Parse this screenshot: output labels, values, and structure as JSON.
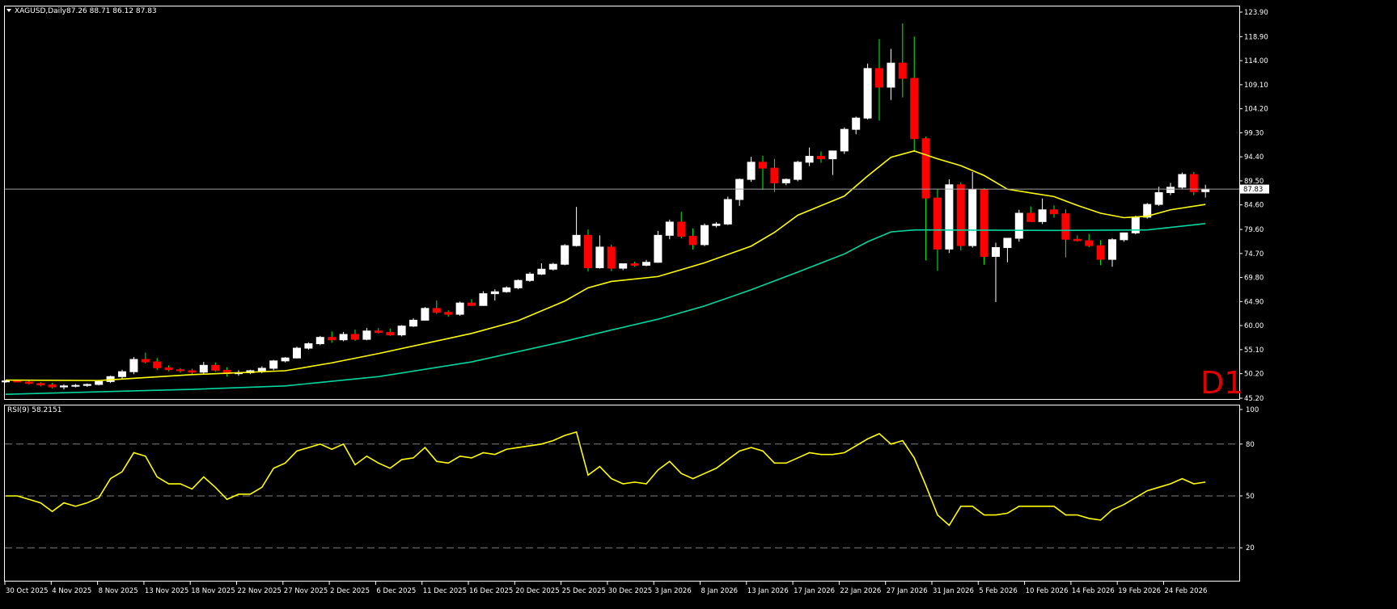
{
  "chart_title": "XAGUSD,Daily",
  "ohlc_readout": "87.26 88.71 86.12 87.83",
  "timeframe_label": "D1",
  "current_price_label": "87.83",
  "rsi_label": "RSI(9) 58.2151",
  "colors": {
    "background": "#000000",
    "frame": "#ffffff",
    "bull_candle": "#ffffff",
    "bear_candle": "#ff0000",
    "ma_fast": "#ffff00",
    "ma_slow": "#00d7a0",
    "rsi_line": "#ffff00",
    "rsi_levels": "#808080",
    "timeframe_label": "#e00000"
  },
  "chart_data": [
    {
      "type": "candlestick",
      "title": "XAGUSD,Daily",
      "y_ticks": [
        "123.90",
        "118.90",
        "114.00",
        "109.10",
        "104.20",
        "99.30",
        "94.40",
        "89.50",
        "84.60",
        "79.60",
        "74.70",
        "69.80",
        "64.90",
        "60.00",
        "55.10",
        "50.20",
        "45.20"
      ],
      "ylim": [
        45.2,
        123.9
      ],
      "x_tick_labels": [
        "30 Oct 2025",
        "4 Nov 2025",
        "8 Nov 2025",
        "13 Nov 2025",
        "18 Nov 2025",
        "22 Nov 2025",
        "27 Nov 2025",
        "2 Dec 2025",
        "6 Dec 2025",
        "11 Dec 2025",
        "16 Dec 2025",
        "20 Dec 2025",
        "25 Dec 2025",
        "30 Dec 2025",
        "3 Jan 2026",
        "8 Jan 2026",
        "13 Jan 2026",
        "17 Jan 2026",
        "22 Jan 2026",
        "27 Jan 2026",
        "31 Jan 2026",
        "5 Feb 2026",
        "10 Feb 2026",
        "14 Feb 2026",
        "19 Feb 2026",
        "24 Feb 2026"
      ],
      "last_price": 87.83,
      "candles": [
        [
          48.6,
          48.9,
          48.3,
          48.7
        ],
        [
          48.7,
          49.0,
          48.4,
          48.5
        ],
        [
          48.5,
          48.8,
          48.0,
          48.2
        ],
        [
          48.2,
          48.5,
          47.6,
          47.9
        ],
        [
          47.9,
          48.3,
          47.2,
          47.5
        ],
        [
          47.5,
          48.0,
          47.0,
          47.7
        ],
        [
          47.7,
          48.1,
          47.4,
          47.8
        ],
        [
          47.8,
          48.2,
          47.5,
          48.0
        ],
        [
          48.0,
          48.9,
          47.8,
          48.6
        ],
        [
          48.6,
          49.8,
          48.3,
          49.6
        ],
        [
          49.6,
          51.0,
          49.2,
          50.6
        ],
        [
          50.6,
          53.6,
          50.1,
          53.1
        ],
        [
          53.1,
          54.5,
          52.3,
          52.6
        ],
        [
          52.6,
          53.4,
          51.0,
          51.4
        ],
        [
          51.4,
          51.9,
          50.7,
          51.0
        ],
        [
          51.0,
          51.3,
          50.4,
          50.8
        ],
        [
          50.8,
          51.2,
          50.1,
          50.5
        ],
        [
          50.5,
          52.6,
          50.0,
          51.9
        ],
        [
          51.9,
          52.5,
          50.6,
          50.9
        ],
        [
          50.9,
          51.5,
          49.6,
          50.2
        ],
        [
          50.2,
          50.9,
          49.8,
          50.4
        ],
        [
          50.4,
          51.0,
          50.1,
          50.8
        ],
        [
          50.8,
          51.7,
          50.3,
          51.3
        ],
        [
          51.3,
          53.0,
          50.9,
          52.8
        ],
        [
          52.8,
          53.6,
          52.5,
          53.4
        ],
        [
          53.4,
          55.7,
          53.3,
          55.4
        ],
        [
          55.4,
          56.6,
          55.1,
          56.3
        ],
        [
          56.3,
          57.9,
          56.0,
          57.6
        ],
        [
          57.6,
          58.8,
          56.5,
          57.1
        ],
        [
          57.1,
          58.7,
          56.8,
          58.2
        ],
        [
          58.2,
          59.2,
          56.9,
          57.2
        ],
        [
          57.2,
          59.5,
          57.0,
          58.9
        ],
        [
          58.9,
          59.5,
          58.4,
          58.6
        ],
        [
          58.6,
          59.4,
          57.9,
          58.1
        ],
        [
          58.1,
          60.1,
          57.8,
          59.9
        ],
        [
          59.9,
          61.5,
          59.7,
          61.1
        ],
        [
          61.1,
          63.8,
          61.0,
          63.5
        ],
        [
          63.5,
          65.1,
          62.4,
          62.7
        ],
        [
          62.7,
          63.1,
          61.8,
          62.3
        ],
        [
          62.3,
          64.9,
          62.0,
          64.6
        ],
        [
          64.6,
          65.4,
          64.0,
          64.1
        ],
        [
          64.1,
          67.0,
          64.0,
          66.5
        ],
        [
          66.5,
          67.4,
          65.1,
          66.9
        ],
        [
          66.9,
          68.0,
          66.7,
          67.7
        ],
        [
          67.7,
          69.4,
          67.4,
          69.2
        ],
        [
          69.2,
          70.9,
          68.9,
          70.5
        ],
        [
          70.5,
          72.7,
          70.3,
          71.5
        ],
        [
          71.5,
          72.8,
          71.2,
          72.5
        ],
        [
          72.5,
          76.6,
          72.3,
          76.3
        ],
        [
          76.3,
          84.2,
          76.1,
          78.4
        ],
        [
          78.4,
          79.6,
          71.0,
          71.8
        ],
        [
          71.8,
          78.4,
          71.6,
          76.0
        ],
        [
          76.0,
          76.5,
          71.1,
          71.7
        ],
        [
          71.7,
          72.5,
          71.3,
          72.6
        ],
        [
          72.6,
          73.0,
          72.0,
          72.3
        ],
        [
          72.3,
          73.4,
          72.1,
          72.9
        ],
        [
          72.9,
          79.3,
          72.8,
          78.4
        ],
        [
          78.4,
          81.6,
          77.6,
          81.1
        ],
        [
          81.1,
          83.2,
          77.8,
          78.2
        ],
        [
          78.2,
          79.8,
          75.5,
          76.5
        ],
        [
          76.5,
          80.8,
          76.2,
          80.4
        ],
        [
          80.4,
          81.1,
          80.0,
          80.7
        ],
        [
          80.7,
          86.3,
          80.5,
          85.7
        ],
        [
          85.7,
          90.0,
          84.4,
          89.8
        ],
        [
          89.8,
          94.4,
          89.3,
          93.3
        ],
        [
          93.3,
          94.6,
          87.7,
          92.1
        ],
        [
          92.1,
          94.0,
          87.2,
          89.1
        ],
        [
          89.1,
          90.0,
          88.6,
          89.8
        ],
        [
          89.8,
          93.6,
          89.4,
          93.3
        ],
        [
          93.3,
          96.3,
          92.5,
          94.5
        ],
        [
          94.5,
          95.5,
          93.2,
          94.0
        ],
        [
          94.0,
          95.1,
          90.7,
          95.6
        ],
        [
          95.6,
          100.4,
          95.0,
          100.0
        ],
        [
          100.0,
          102.6,
          99.0,
          102.3
        ],
        [
          102.3,
          113.4,
          102.0,
          112.4
        ],
        [
          112.4,
          118.4,
          101.8,
          108.6
        ],
        [
          108.6,
          116.4,
          106.0,
          113.5
        ],
        [
          113.5,
          121.6,
          106.5,
          110.4
        ],
        [
          110.4,
          118.9,
          95.4,
          98.1
        ],
        [
          98.1,
          98.5,
          73.3,
          86.0
        ],
        [
          86.0,
          87.9,
          71.2,
          75.6
        ],
        [
          75.6,
          89.8,
          74.8,
          88.7
        ],
        [
          88.7,
          89.2,
          75.3,
          76.3
        ],
        [
          76.3,
          91.3,
          75.9,
          87.7
        ],
        [
          87.7,
          88.0,
          72.4,
          74.1
        ],
        [
          74.1,
          76.9,
          64.8,
          75.9
        ],
        [
          75.9,
          77.7,
          72.9,
          77.8
        ],
        [
          77.8,
          83.6,
          77.1,
          82.9
        ],
        [
          82.9,
          84.3,
          81.5,
          81.2
        ],
        [
          81.2,
          85.9,
          80.7,
          83.6
        ],
        [
          83.6,
          84.5,
          82.0,
          82.8
        ],
        [
          82.8,
          83.7,
          73.9,
          77.6
        ],
        [
          77.6,
          78.4,
          77.1,
          77.3
        ],
        [
          77.3,
          78.7,
          76.0,
          76.3
        ],
        [
          76.3,
          77.4,
          72.3,
          73.5
        ],
        [
          73.5,
          77.8,
          72.0,
          77.5
        ],
        [
          77.5,
          78.9,
          77.1,
          78.9
        ],
        [
          78.9,
          82.4,
          78.6,
          82.1
        ],
        [
          82.1,
          85.0,
          81.8,
          84.7
        ],
        [
          84.7,
          88.3,
          84.4,
          87.1
        ],
        [
          87.1,
          89.1,
          86.6,
          88.2
        ],
        [
          88.2,
          91.2,
          87.9,
          90.8
        ],
        [
          90.8,
          91.3,
          86.6,
          87.3
        ],
        [
          87.3,
          88.7,
          86.1,
          87.8
        ]
      ],
      "ma_fast_points": [
        [
          0,
          48.9
        ],
        [
          8,
          48.8
        ],
        [
          16,
          50.0
        ],
        [
          24,
          50.8
        ],
        [
          28,
          52.4
        ],
        [
          32,
          54.3
        ],
        [
          40,
          58.4
        ],
        [
          44,
          61.0
        ],
        [
          48,
          65.0
        ],
        [
          50,
          67.7
        ],
        [
          52,
          69.0
        ],
        [
          56,
          70.0
        ],
        [
          60,
          72.8
        ],
        [
          64,
          76.2
        ],
        [
          66,
          79.0
        ],
        [
          68,
          82.5
        ],
        [
          72,
          86.4
        ],
        [
          74,
          90.5
        ],
        [
          76,
          94.3
        ],
        [
          78,
          95.6
        ],
        [
          80,
          94.0
        ],
        [
          82,
          92.6
        ],
        [
          84,
          90.6
        ],
        [
          86,
          87.8
        ],
        [
          90,
          86.3
        ],
        [
          92,
          84.5
        ],
        [
          94,
          82.9
        ],
        [
          96,
          82.0
        ],
        [
          98,
          82.3
        ],
        [
          100,
          83.6
        ],
        [
          103,
          84.7
        ]
      ],
      "ma_slow_points": [
        [
          0,
          46.0
        ],
        [
          16,
          47.0
        ],
        [
          24,
          47.7
        ],
        [
          32,
          49.6
        ],
        [
          40,
          52.6
        ],
        [
          48,
          56.8
        ],
        [
          52,
          59.1
        ],
        [
          56,
          61.3
        ],
        [
          60,
          64.0
        ],
        [
          64,
          67.3
        ],
        [
          68,
          70.9
        ],
        [
          72,
          74.6
        ],
        [
          74,
          77.1
        ],
        [
          76,
          79.1
        ],
        [
          78,
          79.5
        ],
        [
          90,
          79.4
        ],
        [
          98,
          79.5
        ],
        [
          103,
          80.8
        ]
      ]
    },
    {
      "type": "line",
      "title": "RSI(9) 58.2151",
      "y_ticks": [
        "100",
        "80",
        "50",
        "20"
      ],
      "ylim": [
        0,
        100
      ],
      "levels": [
        80,
        50,
        20
      ],
      "values": [
        50,
        50,
        48,
        46,
        41,
        46,
        44,
        46,
        49,
        60,
        64,
        75,
        73,
        61,
        57,
        57,
        54,
        61,
        55,
        48,
        51,
        51,
        55,
        66,
        69,
        76,
        78,
        80,
        77,
        80,
        68,
        73,
        69,
        66,
        71,
        72,
        78,
        70,
        69,
        73,
        72,
        75,
        74,
        77,
        78,
        79,
        80,
        82,
        85,
        87,
        62,
        67,
        60,
        57,
        58,
        57,
        65,
        70,
        63,
        60,
        63,
        66,
        71,
        76,
        78,
        76,
        69,
        69,
        72,
        75,
        74,
        74,
        75,
        79,
        83,
        86,
        80,
        82,
        72,
        56,
        39,
        33,
        44,
        44,
        39,
        39,
        40,
        44,
        44,
        44,
        44,
        39,
        39,
        37,
        36,
        42,
        45,
        49,
        53,
        55,
        57,
        60,
        57,
        58
      ]
    }
  ]
}
